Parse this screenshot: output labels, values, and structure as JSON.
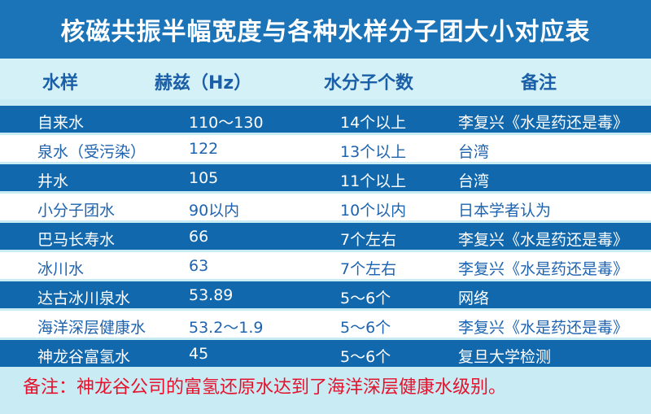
{
  "title": "核磁共振半幅宽度与各种水样分子团大小对应表",
  "headers": [
    "水样",
    "赫兹（Hz）",
    "水分子个数",
    "备注"
  ],
  "rows": [
    [
      "自来水",
      "110～130",
      "14个以上",
      "李复兴《水是药还是毒》"
    ],
    [
      "泉水（受污染）",
      "122",
      "13个以上",
      "台湾"
    ],
    [
      "井水",
      "105",
      "11个以上",
      "台湾"
    ],
    [
      "小分子团水",
      "90以内",
      "10个以内",
      "日本学者认为"
    ],
    [
      "巴马长寿水",
      "66",
      "7个左右",
      "李复兴《水是药还是毒》"
    ],
    [
      "冰川水",
      "63",
      "7个左右",
      "李复兴《水是药还是毒》"
    ],
    [
      "达古冰川泉水",
      "53.89",
      "5～6个",
      "网络"
    ],
    [
      "海洋深层健康水",
      "53.2～1.9",
      "5～6个",
      "李复兴《水是药还是毒》"
    ],
    [
      "神龙谷富氢水",
      "45",
      "5～6个",
      "复旦大学检测"
    ]
  ],
  "note": "备注：神龙谷公司的富氢还原水达到了海洋深层健康水级别。",
  "colors": {
    "title_bg": "#1b73b8",
    "dark_row": "#1268ad",
    "light_row": "#ffffff",
    "header_text": "#1a5fa8",
    "note_text": "#e4122c"
  }
}
